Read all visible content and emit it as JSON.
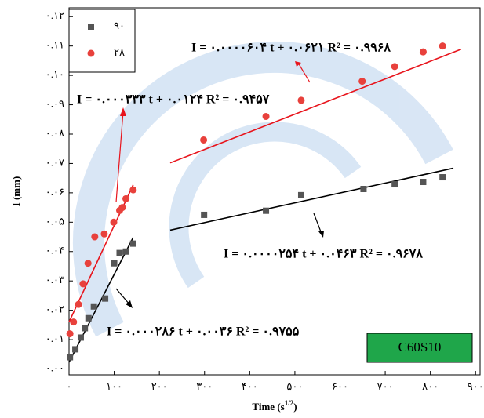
{
  "chart_data": {
    "type": "scatter",
    "y_label": "I (mm)",
    "x_label": [
      "Time (s",
      "1/2",
      ")"
    ],
    "xlim": [
      0,
      910
    ],
    "ylim": [
      -0.002,
      0.123
    ],
    "xticks": [
      {
        "value": 0,
        "label": "۰"
      },
      {
        "value": 100,
        "label": "۱۰۰"
      },
      {
        "value": 200,
        "label": "۲۰۰"
      },
      {
        "value": 300,
        "label": "۳۰۰"
      },
      {
        "value": 400,
        "label": "۴۰۰"
      },
      {
        "value": 500,
        "label": "۵۰۰"
      },
      {
        "value": 600,
        "label": "۶۰۰"
      },
      {
        "value": 700,
        "label": "۷۰۰"
      },
      {
        "value": 800,
        "label": "۸۰۰"
      },
      {
        "value": 900,
        "label": "۹۰۰"
      }
    ],
    "yticks": [
      {
        "value": 0,
        "label": "۰.۰۰"
      },
      {
        "value": 0.01,
        "label": "۰.۰۱"
      },
      {
        "value": 0.02,
        "label": "۰.۰۲"
      },
      {
        "value": 0.03,
        "label": "۰.۰۳"
      },
      {
        "value": 0.04,
        "label": "۰.۰۴"
      },
      {
        "value": 0.05,
        "label": "۰.۰۵"
      },
      {
        "value": 0.06,
        "label": "۰.۰۶"
      },
      {
        "value": 0.07,
        "label": "۰.۰۷"
      },
      {
        "value": 0.08,
        "label": "۰.۰۸"
      },
      {
        "value": 0.09,
        "label": "۰.۰۹"
      },
      {
        "value": 0.1,
        "label": "۰.۱۰"
      },
      {
        "value": 0.11,
        "label": "۰.۱۱"
      },
      {
        "value": 0.12,
        "label": "۰.۱۲"
      }
    ],
    "legend": "top-left",
    "series": [
      {
        "name": "۹۰",
        "color": "#555555",
        "marker": "square",
        "x": [
          2,
          14,
          26,
          35,
          43,
          55,
          80,
          100,
          112,
          126,
          142,
          299,
          436,
          514,
          652,
          721,
          784,
          827
        ],
        "values": [
          0.004,
          0.0067,
          0.0107,
          0.0139,
          0.0173,
          0.0213,
          0.024,
          0.036,
          0.0395,
          0.04,
          0.0427,
          0.0525,
          0.0539,
          0.0592,
          0.0613,
          0.0629,
          0.0637,
          0.0653
        ],
        "fits": [
          {
            "color": "#000000",
            "x": [
              0,
              142
            ],
            "values": [
              0.0023,
              0.0448
            ]
          },
          {
            "color": "#000000",
            "x": [
              224,
              851
            ],
            "values": [
              0.0473,
              0.0684
            ]
          }
        ]
      },
      {
        "name": "۲۸",
        "color": "#e8413c",
        "marker": "circle",
        "x": [
          2,
          10,
          21,
          31,
          42,
          57,
          78,
          99,
          112,
          118,
          126,
          142,
          298,
          436,
          514,
          649,
          721,
          784,
          827
        ],
        "values": [
          0.012,
          0.016,
          0.022,
          0.029,
          0.036,
          0.045,
          0.046,
          0.05,
          0.054,
          0.055,
          0.058,
          0.061,
          0.078,
          0.086,
          0.0915,
          0.098,
          0.103,
          0.108,
          0.11
        ],
        "fits": [
          {
            "color": "#e8141c",
            "x": [
              0,
              142
            ],
            "values": [
              0.016,
              0.0627
            ]
          },
          {
            "color": "#e8141c",
            "x": [
              224,
              868
            ],
            "values": [
              0.0702,
              0.1089
            ]
          }
        ]
      }
    ],
    "annotations": [
      "I = ۰.۰۰۰۰۶۰۴ t + ۰.۰۶۲۱  R² = ۰.۹۹۶۸",
      "I = ۰.۰۰۰۳۳۳ t + ۰.۰۱۲۴  R² = ۰.۹۴۵۷",
      "I = ۰.۰۰۰۰۲۵۴ t + ۰.۰۴۶۳  R² = ۰.۹۶۷۸",
      "I = ۰.۰۰۰۲۸۶ t + ۰.۰۰۳۶  R² = ۰.۹۷۵۵",
      "C60S10"
    ]
  }
}
